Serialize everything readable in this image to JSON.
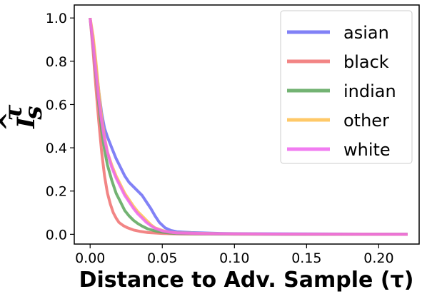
{
  "chart_data": {
    "type": "line",
    "title": "",
    "xlabel": "Distance to Adv. Sample (τ)",
    "ylabel": "I_s^τ (hat)",
    "xlim": [
      -0.011,
      0.228
    ],
    "ylim": [
      -0.045,
      1.06
    ],
    "x_ticks": [
      0.0,
      0.05,
      0.1,
      0.15,
      0.2
    ],
    "x_tick_labels": [
      "0.00",
      "0.05",
      "0.10",
      "0.15",
      "0.20"
    ],
    "y_ticks": [
      0.0,
      0.2,
      0.4,
      0.6,
      0.8,
      1.0
    ],
    "y_tick_labels": [
      "0.0",
      "0.2",
      "0.4",
      "0.6",
      "0.8",
      "1.0"
    ],
    "grid": false,
    "legend_position": "top-right",
    "series": [
      {
        "name": "asian",
        "color": "#6b6bf5",
        "x": [
          0.0,
          0.002,
          0.004,
          0.006,
          0.008,
          0.01,
          0.012,
          0.015,
          0.018,
          0.021,
          0.024,
          0.027,
          0.03,
          0.033,
          0.036,
          0.039,
          0.042,
          0.045,
          0.048,
          0.052,
          0.056,
          0.06,
          0.07,
          0.08,
          0.09,
          0.1,
          0.15,
          0.22
        ],
        "y": [
          1.0,
          0.9,
          0.78,
          0.66,
          0.56,
          0.49,
          0.45,
          0.4,
          0.35,
          0.31,
          0.27,
          0.24,
          0.22,
          0.2,
          0.18,
          0.15,
          0.12,
          0.085,
          0.055,
          0.03,
          0.018,
          0.012,
          0.008,
          0.006,
          0.004,
          0.003,
          0.002,
          0.001
        ]
      },
      {
        "name": "black",
        "color": "#f07070",
        "x": [
          0.0,
          0.002,
          0.004,
          0.006,
          0.008,
          0.01,
          0.012,
          0.014,
          0.016,
          0.018,
          0.02,
          0.023,
          0.026,
          0.03,
          0.035,
          0.04,
          0.05,
          0.06,
          0.1,
          0.15,
          0.22
        ],
        "y": [
          1.0,
          0.85,
          0.68,
          0.52,
          0.38,
          0.27,
          0.19,
          0.14,
          0.1,
          0.075,
          0.055,
          0.04,
          0.03,
          0.02,
          0.013,
          0.008,
          0.004,
          0.002,
          0.001,
          0.0,
          0.0
        ]
      },
      {
        "name": "indian",
        "color": "#5aa65a",
        "x": [
          0.0,
          0.002,
          0.004,
          0.006,
          0.008,
          0.01,
          0.012,
          0.015,
          0.018,
          0.021,
          0.024,
          0.027,
          0.03,
          0.033,
          0.036,
          0.04,
          0.045,
          0.05,
          0.055,
          0.06,
          0.08,
          0.1,
          0.15,
          0.22
        ],
        "y": [
          1.0,
          0.88,
          0.74,
          0.6,
          0.48,
          0.39,
          0.32,
          0.25,
          0.19,
          0.15,
          0.11,
          0.085,
          0.065,
          0.05,
          0.038,
          0.025,
          0.016,
          0.01,
          0.006,
          0.004,
          0.002,
          0.001,
          0.0,
          0.0
        ]
      },
      {
        "name": "other",
        "color": "#ffc04d",
        "x": [
          0.0,
          0.002,
          0.004,
          0.006,
          0.008,
          0.01,
          0.012,
          0.015,
          0.018,
          0.021,
          0.024,
          0.027,
          0.03,
          0.033,
          0.036,
          0.039,
          0.042,
          0.045,
          0.05,
          0.055,
          0.06,
          0.08,
          0.1,
          0.15,
          0.22
        ],
        "y": [
          1.0,
          0.92,
          0.8,
          0.66,
          0.54,
          0.45,
          0.38,
          0.32,
          0.27,
          0.23,
          0.19,
          0.16,
          0.13,
          0.105,
          0.085,
          0.065,
          0.045,
          0.03,
          0.018,
          0.01,
          0.007,
          0.004,
          0.002,
          0.001,
          0.0
        ]
      },
      {
        "name": "white",
        "color": "#ee66ee",
        "x": [
          0.0,
          0.002,
          0.004,
          0.006,
          0.008,
          0.01,
          0.012,
          0.015,
          0.018,
          0.021,
          0.024,
          0.027,
          0.03,
          0.033,
          0.036,
          0.039,
          0.042,
          0.045,
          0.05,
          0.055,
          0.06,
          0.08,
          0.1,
          0.15,
          0.22
        ],
        "y": [
          1.0,
          0.88,
          0.75,
          0.62,
          0.52,
          0.44,
          0.38,
          0.31,
          0.26,
          0.22,
          0.18,
          0.15,
          0.12,
          0.095,
          0.075,
          0.055,
          0.04,
          0.028,
          0.016,
          0.01,
          0.006,
          0.003,
          0.002,
          0.001,
          0.0
        ]
      }
    ]
  }
}
